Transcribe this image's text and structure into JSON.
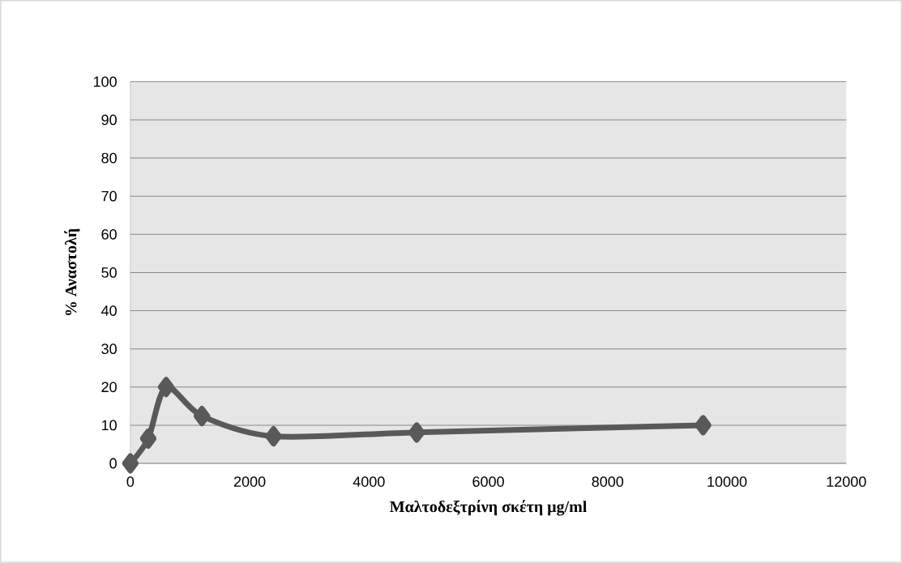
{
  "chart_data": {
    "type": "line",
    "xlabel": "Μαλτοδεξτρίνη σκέτη μg/ml",
    "ylabel": "% Αναστολή",
    "x": [
      0,
      300,
      600,
      1200,
      2400,
      4800,
      9600
    ],
    "series": [
      {
        "color": "#595959",
        "values": [
          0,
          6.5,
          20,
          12.4,
          7.1,
          8.1,
          10
        ]
      }
    ],
    "xlim": [
      0,
      12000
    ],
    "xticks": [
      0,
      2000,
      4000,
      6000,
      8000,
      10000,
      12000
    ],
    "ylim": [
      0,
      100
    ],
    "yticks": [
      0,
      10,
      20,
      30,
      40,
      50,
      60,
      70,
      80,
      90,
      100
    ],
    "grid": "y",
    "marker": "diamond",
    "line_style": "solid"
  }
}
